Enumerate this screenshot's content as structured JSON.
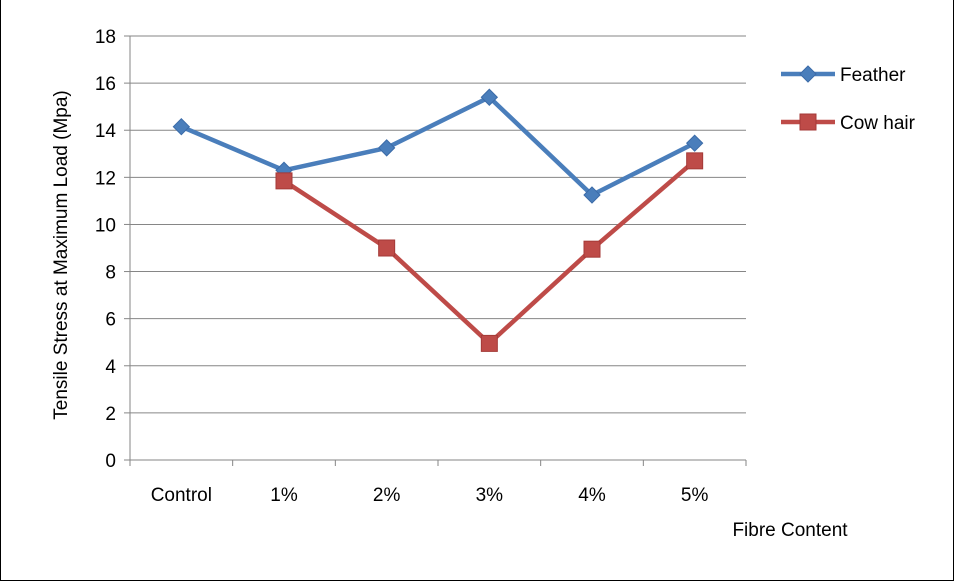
{
  "chart_data": {
    "type": "line",
    "categories": [
      "Control",
      "1%",
      "2%",
      "3%",
      "4%",
      "5%"
    ],
    "series": [
      {
        "name": "Feather",
        "values": [
          14.15,
          12.3,
          13.25,
          15.4,
          11.25,
          13.45
        ],
        "color": "#4A7EBB",
        "marker": "diamond"
      },
      {
        "name": "Cow hair",
        "values": [
          null,
          11.85,
          9.0,
          4.95,
          8.95,
          12.7
        ],
        "color": "#BE4B48",
        "marker": "square"
      }
    ],
    "xlabel": "Fibre Content",
    "ylabel": "Tensile Stress at Maximum Load (Mpa)",
    "ylim": [
      0,
      18
    ],
    "yticks": [
      0,
      2,
      4,
      6,
      8,
      10,
      12,
      14,
      16,
      18
    ],
    "grid": true,
    "legend": "right"
  }
}
